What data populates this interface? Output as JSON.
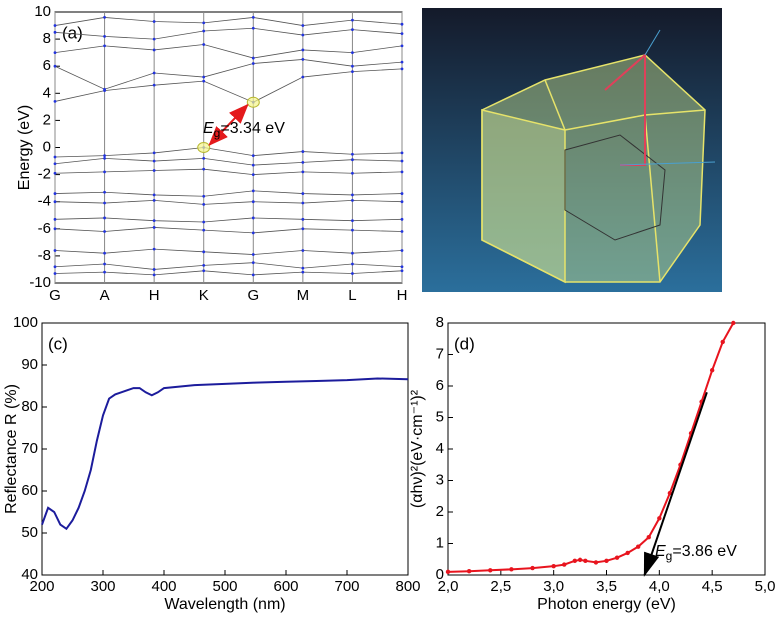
{
  "chart_data": [
    {
      "type": "line",
      "label": "(a)",
      "ylabel": "Energy (eV)",
      "annotation": {
        "symbol": "E",
        "sub": "g",
        "text": "=3.34 eV"
      },
      "categories": [
        "G",
        "A",
        "H",
        "K",
        "G",
        "M",
        "L",
        "H"
      ],
      "xgrid": true,
      "markers": true,
      "ylim": [
        -10,
        10
      ],
      "yticks": [
        -10,
        -8,
        -6,
        -4,
        -2,
        0,
        2,
        4,
        6,
        8,
        10
      ],
      "series": [
        {
          "color": "#555555",
          "values": [
            3.4,
            4.2,
            4.6,
            4.9,
            3.34,
            5.2,
            5.6,
            5.8
          ]
        },
        {
          "color": "#555555",
          "values": [
            6.0,
            4.3,
            5.5,
            5.2,
            6.2,
            6.5,
            6.0,
            6.3
          ]
        },
        {
          "color": "#555555",
          "values": [
            7.0,
            7.5,
            7.2,
            7.6,
            6.6,
            7.2,
            7.0,
            7.5
          ]
        },
        {
          "color": "#555555",
          "values": [
            8.5,
            8.2,
            8.0,
            8.6,
            8.8,
            8.3,
            8.7,
            8.4
          ]
        },
        {
          "color": "#555555",
          "values": [
            9.0,
            9.6,
            9.3,
            9.2,
            9.6,
            9.0,
            9.4,
            9.1
          ]
        },
        {
          "color": "#555555",
          "values": [
            -0.7,
            -0.6,
            -0.4,
            0.0,
            -0.6,
            -0.3,
            -0.5,
            -0.4
          ]
        },
        {
          "color": "#555555",
          "values": [
            -1.2,
            -0.8,
            -1.0,
            -0.8,
            -1.3,
            -1.1,
            -0.9,
            -1.0
          ]
        },
        {
          "color": "#555555",
          "values": [
            -1.9,
            -1.8,
            -1.7,
            -1.6,
            -2.0,
            -1.8,
            -1.9,
            -1.8
          ]
        },
        {
          "color": "#555555",
          "values": [
            -3.4,
            -3.3,
            -3.5,
            -3.6,
            -3.2,
            -3.4,
            -3.5,
            -3.4
          ]
        },
        {
          "color": "#555555",
          "values": [
            -4.0,
            -4.1,
            -3.9,
            -4.2,
            -4.0,
            -4.1,
            -3.9,
            -4.0
          ]
        },
        {
          "color": "#555555",
          "values": [
            -5.3,
            -5.2,
            -5.4,
            -5.5,
            -5.2,
            -5.3,
            -5.4,
            -5.3
          ]
        },
        {
          "color": "#555555",
          "values": [
            -6.0,
            -6.2,
            -5.9,
            -6.1,
            -6.3,
            -6.0,
            -6.1,
            -6.2
          ]
        },
        {
          "color": "#555555",
          "values": [
            -7.6,
            -7.8,
            -7.5,
            -7.7,
            -7.9,
            -7.6,
            -7.8,
            -7.6
          ]
        },
        {
          "color": "#555555",
          "values": [
            -8.8,
            -8.6,
            -9.0,
            -8.7,
            -8.5,
            -8.9,
            -8.6,
            -8.8
          ]
        },
        {
          "color": "#555555",
          "values": [
            -9.3,
            -9.2,
            -9.4,
            -9.1,
            -9.4,
            -9.2,
            -9.3,
            -9.1
          ]
        }
      ]
    },
    {
      "type": "line",
      "label": "(c)",
      "xlabel": "Wavelength (nm)",
      "ylabel": "Reflectance R (%)",
      "xlim": [
        200,
        800
      ],
      "xticks": [
        200,
        300,
        400,
        500,
        600,
        700,
        800
      ],
      "ylim": [
        40,
        100
      ],
      "yticks": [
        40,
        50,
        60,
        70,
        80,
        90,
        100
      ],
      "markers": false,
      "series": [
        {
          "color": "#1c1c9c",
          "x": [
            200,
            210,
            220,
            230,
            240,
            250,
            260,
            270,
            280,
            290,
            300,
            310,
            320,
            330,
            340,
            350,
            360,
            370,
            380,
            390,
            400,
            450,
            500,
            550,
            600,
            650,
            700,
            750,
            800
          ],
          "values": [
            52,
            56,
            55,
            52,
            51,
            53,
            56,
            60,
            65,
            72,
            78,
            82,
            83,
            83.5,
            84,
            84.5,
            84.5,
            83.5,
            82.8,
            83.5,
            84.5,
            85.2,
            85.5,
            85.8,
            86,
            86.2,
            86.4,
            86.8,
            86.6
          ]
        }
      ]
    },
    {
      "type": "line",
      "label": "(d)",
      "xlabel": "Photon energy (eV)",
      "ylabel": "(αhν)²(eV·cm⁻¹)²",
      "annotation": {
        "symbol": "E",
        "sub": "g",
        "text": "=3.86 eV"
      },
      "xlim": [
        2,
        5
      ],
      "xticks": [
        {
          "value": 2,
          "label": "2,0"
        },
        {
          "value": 2.5,
          "label": "2,5"
        },
        {
          "value": 3,
          "label": "3,0"
        },
        {
          "value": 3.5,
          "label": "3,5"
        },
        {
          "value": 4,
          "label": "4,0"
        },
        {
          "value": 4.5,
          "label": "4,5"
        },
        {
          "value": 5,
          "label": "5,0"
        }
      ],
      "ylim": [
        0,
        8
      ],
      "yticks": [
        0,
        1,
        2,
        3,
        4,
        5,
        6,
        7,
        8
      ],
      "markers": true,
      "series": [
        {
          "color": "#e8141e",
          "x": [
            2.0,
            2.2,
            2.4,
            2.6,
            2.8,
            3.0,
            3.1,
            3.2,
            3.25,
            3.3,
            3.4,
            3.5,
            3.6,
            3.7,
            3.8,
            3.9,
            4.0,
            4.1,
            4.2,
            4.3,
            4.4,
            4.5,
            4.6,
            4.7
          ],
          "values": [
            0.1,
            0.12,
            0.15,
            0.18,
            0.22,
            0.28,
            0.33,
            0.45,
            0.48,
            0.45,
            0.4,
            0.45,
            0.55,
            0.7,
            0.9,
            1.2,
            1.8,
            2.6,
            3.5,
            4.5,
            5.5,
            6.5,
            7.4,
            8.0
          ]
        },
        {
          "color": "#000000",
          "x": [
            4.45,
            3.86
          ],
          "values": [
            5.8,
            0
          ]
        }
      ]
    }
  ]
}
